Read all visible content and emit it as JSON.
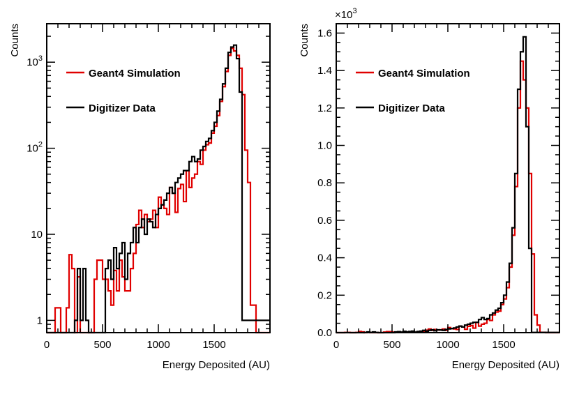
{
  "colors": {
    "simulation": "#e00000",
    "data": "#000000",
    "frame": "#000000"
  },
  "chart_data": [
    {
      "type": "histogram",
      "yscale": "log",
      "title": "",
      "xlabel": "Energy Deposited (AU)",
      "ylabel": "Counts",
      "xlim": [
        0,
        2000
      ],
      "ylim": [
        0.72,
        2800
      ],
      "xticks": [
        0,
        500,
        1000,
        1500
      ],
      "xtick_labels": [
        "0",
        "500",
        "1000",
        "1500"
      ],
      "ytick_labels": [
        {
          "value": 1,
          "label": "1"
        },
        {
          "value": 10,
          "label": "10"
        },
        {
          "value": 100,
          "base": "10",
          "exp": "2"
        },
        {
          "value": 1000,
          "base": "10",
          "exp": "3"
        }
      ],
      "legend": [
        "Geant4 Simulation",
        "Digitizer Data"
      ],
      "legend_position": "top-left",
      "bin_width": 25,
      "series": [
        {
          "name": "Geant4 Simulation",
          "values": [
            0,
            0,
            0,
            1.4,
            1.4,
            0,
            0,
            1.4,
            5.8,
            4,
            0,
            3.2,
            0,
            0,
            0,
            0,
            0,
            3,
            5,
            5,
            3,
            3,
            2.2,
            1.5,
            3.8,
            2.2,
            5,
            3.2,
            2.2,
            2.2,
            4,
            6,
            13,
            19,
            12,
            17,
            14,
            15,
            19,
            12,
            27,
            22,
            20,
            17,
            35,
            30,
            18,
            34,
            38,
            24,
            55,
            35,
            45,
            50,
            70,
            65,
            95,
            110,
            115,
            150,
            180,
            240,
            350,
            520,
            780,
            1200,
            1450,
            1350,
            1200,
            850,
            420,
            95,
            40,
            1.5,
            1.5,
            0,
            0,
            0,
            0,
            0
          ]
        },
        {
          "name": "Digitizer Data",
          "values": [
            0,
            0,
            0,
            0,
            0,
            0,
            0,
            0,
            0,
            0,
            1,
            4,
            1,
            4,
            1,
            0,
            0,
            0,
            0,
            0,
            0,
            4,
            5,
            3,
            7,
            4,
            6,
            8,
            3,
            6,
            8,
            12,
            8,
            12,
            15,
            10,
            15,
            14,
            12,
            17,
            20,
            22,
            25,
            30,
            35,
            30,
            40,
            45,
            50,
            55,
            55,
            70,
            80,
            70,
            75,
            95,
            105,
            120,
            130,
            160,
            200,
            270,
            370,
            560,
            850,
            1300,
            1500,
            1580,
            1100,
            450,
            1,
            1,
            1,
            1,
            1,
            1,
            1,
            1,
            1,
            1
          ]
        }
      ]
    },
    {
      "type": "histogram",
      "yscale": "linear",
      "title": "",
      "xlabel": "Energy Deposited (AU)",
      "ylabel": "Counts",
      "y_multiplier": {
        "base": "×10",
        "exp": "3"
      },
      "xlim": [
        0,
        2000
      ],
      "ylim": [
        0,
        1.65
      ],
      "xticks": [
        0,
        500,
        1000,
        1500
      ],
      "xtick_labels": [
        "0",
        "500",
        "1000",
        "1500"
      ],
      "yticks": [
        0,
        0.2,
        0.4,
        0.6,
        0.8,
        1.0,
        1.2,
        1.4,
        1.6
      ],
      "ytick_labels": [
        "0.0",
        "0.2",
        "0.4",
        "0.6",
        "0.8",
        "1.0",
        "1.2",
        "1.4",
        "1.6"
      ],
      "legend": [
        "Geant4 Simulation",
        "Digitizer Data"
      ],
      "legend_position": "top-left",
      "bin_width": 25,
      "series": [
        {
          "name": "Geant4 Simulation",
          "values": [
            0,
            0,
            0,
            0.001,
            0.001,
            0,
            0,
            0.001,
            0.006,
            0.004,
            0,
            0.003,
            0,
            0,
            0,
            0,
            0,
            0.003,
            0.005,
            0.005,
            0.003,
            0.003,
            0.002,
            0.0015,
            0.004,
            0.002,
            0.005,
            0.003,
            0.002,
            0.002,
            0.004,
            0.006,
            0.013,
            0.019,
            0.012,
            0.017,
            0.014,
            0.015,
            0.019,
            0.012,
            0.027,
            0.022,
            0.02,
            0.017,
            0.035,
            0.03,
            0.018,
            0.034,
            0.038,
            0.024,
            0.055,
            0.035,
            0.045,
            0.05,
            0.07,
            0.065,
            0.095,
            0.11,
            0.115,
            0.15,
            0.18,
            0.24,
            0.35,
            0.52,
            0.78,
            1.2,
            1.45,
            1.35,
            1.2,
            0.85,
            0.42,
            0.095,
            0.04,
            0.0015,
            0.0015,
            0,
            0,
            0,
            0,
            0
          ]
        },
        {
          "name": "Digitizer Data",
          "values": [
            0,
            0,
            0,
            0,
            0,
            0,
            0,
            0,
            0,
            0,
            0.001,
            0.004,
            0.001,
            0.004,
            0.001,
            0,
            0,
            0,
            0,
            0,
            0,
            0.004,
            0.005,
            0.003,
            0.007,
            0.004,
            0.006,
            0.008,
            0.003,
            0.006,
            0.008,
            0.012,
            0.008,
            0.012,
            0.015,
            0.01,
            0.015,
            0.014,
            0.012,
            0.017,
            0.02,
            0.022,
            0.025,
            0.03,
            0.035,
            0.03,
            0.04,
            0.045,
            0.05,
            0.055,
            0.055,
            0.07,
            0.08,
            0.07,
            0.075,
            0.095,
            0.105,
            0.12,
            0.13,
            0.16,
            0.2,
            0.27,
            0.37,
            0.56,
            0.85,
            1.3,
            1.5,
            1.58,
            1.1,
            0.45,
            0.001,
            0.001,
            0.001,
            0.001,
            0.001,
            0.001,
            0.001,
            0.001,
            0.001,
            0.001
          ]
        }
      ]
    }
  ]
}
